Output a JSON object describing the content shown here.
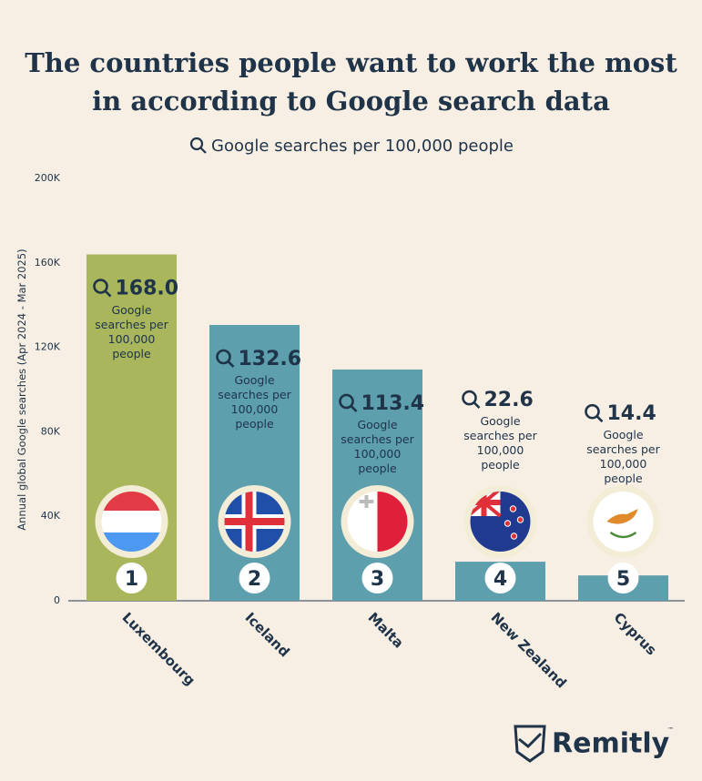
{
  "chart_data": {
    "type": "bar",
    "title": "The countries people want to work the most in according to Google search data",
    "subtitle": "Google searches per 100,000 people",
    "y_label": "Annual global Google searches (Apr 2024 - Mar 2025)",
    "categories": [
      "Luxembourg",
      "Iceland",
      "Malta",
      "New Zealand",
      "Cyprus"
    ],
    "values": [
      164000,
      130600,
      109500,
      18500,
      12000
    ],
    "colors": [
      "#a9b65b",
      "#5e9fae",
      "#5e9fae",
      "#5e9fae",
      "#5e9fae"
    ],
    "rate_labels": [
      "168.0",
      "132.6",
      "113.4",
      "22.6",
      "14.4"
    ],
    "rate_caption": "Google searches per 100,000 people",
    "ranks": [
      1,
      2,
      3,
      4,
      5
    ],
    "ylim": [
      0,
      200000
    ],
    "yticks": [
      0,
      {
        "value": 40000,
        "label": "40K"
      },
      {
        "value": 80000,
        "label": "80K"
      },
      {
        "value": 120000,
        "label": "120K"
      },
      {
        "value": 160000,
        "label": "160K"
      },
      {
        "value": 200000,
        "label": "200K"
      }
    ]
  },
  "logo": {
    "text": "Remitly"
  }
}
